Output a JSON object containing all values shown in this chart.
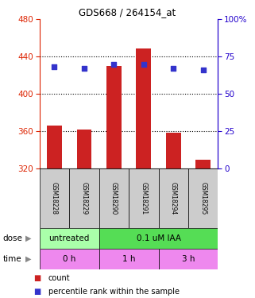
{
  "title": "GDS668 / 264154_at",
  "samples": [
    "GSM18228",
    "GSM18229",
    "GSM18290",
    "GSM18291",
    "GSM18294",
    "GSM18295"
  ],
  "bar_values": [
    366,
    362,
    430,
    449,
    358,
    329
  ],
  "bar_base": 320,
  "percentile_values": [
    68,
    67,
    70,
    70,
    67,
    66
  ],
  "left_ylim": [
    320,
    480
  ],
  "left_yticks": [
    320,
    360,
    400,
    440,
    480
  ],
  "right_ylim": [
    0,
    100
  ],
  "right_yticks": [
    0,
    25,
    50,
    75,
    100
  ],
  "bar_color": "#cc2222",
  "dot_color": "#3333cc",
  "grid_color": "#000000",
  "dose_labels": [
    {
      "text": "untreated",
      "start": 0,
      "end": 2,
      "color": "#aaffaa"
    },
    {
      "text": "0.1 uM IAA",
      "start": 2,
      "end": 6,
      "color": "#55dd55"
    }
  ],
  "time_labels": [
    {
      "text": "0 h",
      "start": 0,
      "end": 2,
      "color": "#ee88ee"
    },
    {
      "text": "1 h",
      "start": 2,
      "end": 4,
      "color": "#ee88ee"
    },
    {
      "text": "3 h",
      "start": 4,
      "end": 6,
      "color": "#ee88ee"
    }
  ],
  "dose_arrow_label": "dose",
  "time_arrow_label": "time",
  "legend_count_label": "count",
  "legend_pct_label": "percentile rank within the sample",
  "left_axis_color": "#dd2200",
  "right_axis_color": "#2200cc",
  "bg_color": "#ffffff",
  "plot_bg_color": "#ffffff",
  "sample_bg_color": "#cccccc"
}
